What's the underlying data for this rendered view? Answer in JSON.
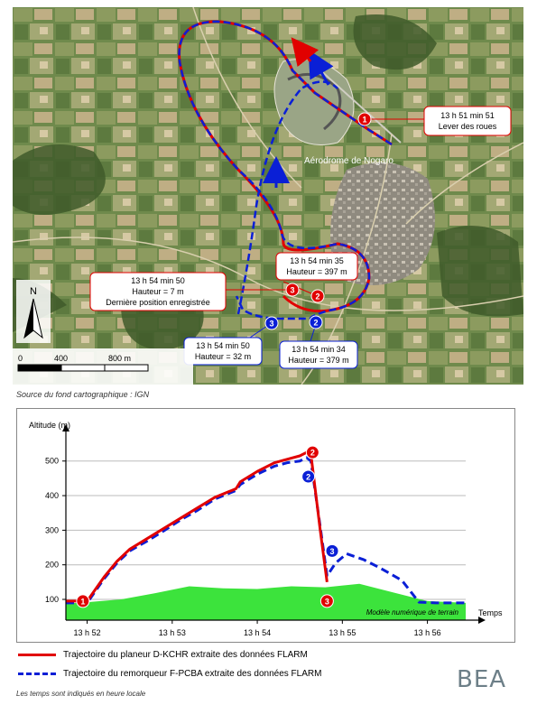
{
  "map": {
    "callouts": {
      "p1_time": "13 h 51 min 51",
      "p1_event": "Lever des roues",
      "red_last_time": "13 h 54 min 50",
      "red_last_height": "Hauteur = 7 m",
      "red_last_note": "Dernière position enregistrée",
      "red2_time": "13 h 54 min 35",
      "red2_height": "Hauteur = 397 m",
      "blue3_time": "13 h 54 min 50",
      "blue3_height": "Hauteur = 32 m",
      "blue2_time": "13 h 54 min 34",
      "blue2_height": "Hauteur = 379 m"
    },
    "aerodrome_label": "Aérodrome de Nogaro",
    "north_label": "N",
    "scale": {
      "labels": [
        "0",
        "400",
        "800 m"
      ]
    },
    "marker_numbers": {
      "one": "1",
      "two": "2",
      "three": "3"
    }
  },
  "source_note": "Source du fond cartographique : IGN",
  "chart_data": {
    "type": "line",
    "ylabel": "Altitude (m)",
    "xlabel": "Temps",
    "y_ticks": [
      100,
      200,
      300,
      400,
      500
    ],
    "ylim": [
      40,
      575
    ],
    "x_tick_labels": [
      "13 h 52",
      "13 h 53",
      "13 h 54",
      "13 h 55",
      "13 h 56"
    ],
    "x_ticks_min": [
      0,
      1,
      2,
      3,
      4
    ],
    "xlim": [
      -0.25,
      4.45
    ],
    "terrain_label": "Modèle numérique de terrain",
    "terrain_color": "#3ce33c",
    "grid": "horizontal",
    "series": [
      {
        "name": "Trajectoire du planeur D-KCHR extraite des données FLARM",
        "color": "#e10000",
        "style": "solid",
        "x": [
          -0.25,
          -0.05,
          0.0,
          0.1,
          0.2,
          0.35,
          0.5,
          0.7,
          0.9,
          1.1,
          1.3,
          1.5,
          1.75,
          1.8,
          2.0,
          2.2,
          2.35,
          2.5,
          2.58,
          2.63,
          2.74,
          2.82
        ],
        "y": [
          95,
          95,
          95,
          130,
          165,
          210,
          245,
          275,
          305,
          335,
          365,
          395,
          420,
          440,
          470,
          495,
          505,
          515,
          525,
          520,
          300,
          150
        ]
      },
      {
        "name": "Trajectoire du remorqueur F-PCBA extraite des données FLARM",
        "color": "#0a1fd6",
        "style": "dashed",
        "x": [
          -0.25,
          -0.05,
          0.0,
          0.1,
          0.2,
          0.35,
          0.5,
          0.7,
          0.9,
          1.1,
          1.3,
          1.5,
          1.75,
          1.8,
          2.0,
          2.2,
          2.35,
          2.5,
          2.58,
          2.63,
          2.74,
          2.82,
          2.92,
          3.05,
          3.25,
          3.45,
          3.7,
          3.9,
          4.1,
          4.45
        ],
        "y": [
          90,
          90,
          90,
          125,
          160,
          205,
          240,
          268,
          298,
          330,
          358,
          390,
          415,
          432,
          462,
          485,
          495,
          500,
          510,
          500,
          310,
          168,
          205,
          232,
          215,
          190,
          155,
          92,
          90,
          90
        ]
      }
    ],
    "terrain": {
      "x": [
        -0.25,
        0.0,
        0.4,
        0.8,
        1.2,
        1.6,
        2.0,
        2.4,
        2.8,
        3.2,
        3.6,
        4.0,
        4.45
      ],
      "y": [
        88,
        92,
        100,
        118,
        138,
        132,
        130,
        138,
        135,
        145,
        120,
        95,
        90
      ]
    },
    "markers": [
      {
        "label": "1",
        "series": "red",
        "x": -0.05,
        "y": 95
      },
      {
        "label": "2",
        "series": "red",
        "x": 2.65,
        "y": 525
      },
      {
        "label": "3",
        "series": "red",
        "x": 2.82,
        "y": 95
      },
      {
        "label": "2",
        "series": "blue",
        "x": 2.6,
        "y": 455
      },
      {
        "label": "3",
        "series": "blue",
        "x": 2.88,
        "y": 240
      }
    ]
  },
  "legend": {
    "red": "Trajectoire du planeur D-KCHR extraite des données FLARM",
    "blue": "Trajectoire du remorqueur F-PCBA extraite des données FLARM"
  },
  "footnote": "Les temps sont indiqués en heure locale",
  "logo_text": "BEA"
}
